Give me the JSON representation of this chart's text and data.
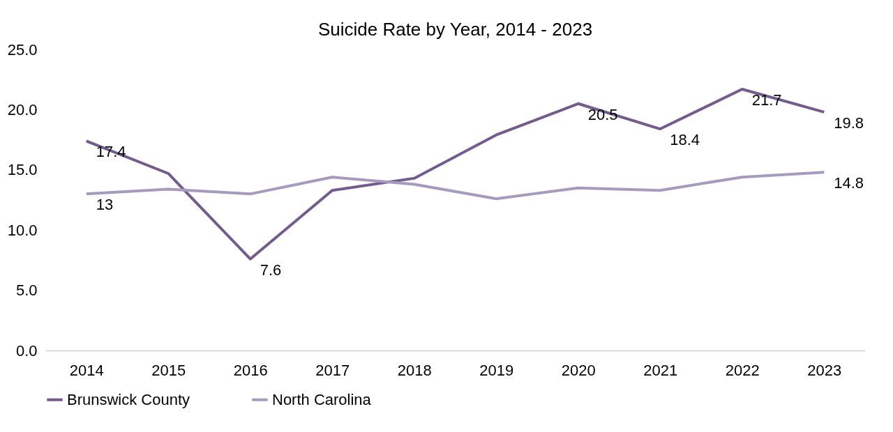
{
  "chart_data": {
    "type": "line",
    "title": "Suicide Rate by Year, 2014 - 2023",
    "categories": [
      "2014",
      "2015",
      "2016",
      "2017",
      "2018",
      "2019",
      "2020",
      "2021",
      "2022",
      "2023"
    ],
    "series": [
      {
        "name": "Brunswick County",
        "color": "#735a8f",
        "values": [
          17.4,
          14.7,
          7.6,
          13.3,
          14.3,
          17.9,
          20.5,
          18.4,
          21.7,
          19.8
        ],
        "value_labels": [
          "17.4",
          null,
          "7.6",
          null,
          null,
          null,
          "20.5",
          "18.4",
          "21.7",
          "19.8"
        ]
      },
      {
        "name": "North Carolina",
        "color": "#a899c0",
        "values": [
          13,
          13.4,
          13.0,
          14.4,
          13.8,
          12.6,
          13.5,
          13.3,
          14.4,
          14.8
        ],
        "value_labels": [
          "13",
          null,
          null,
          null,
          null,
          null,
          null,
          null,
          null,
          "14.8"
        ]
      }
    ],
    "ylim": [
      0,
      25
    ],
    "yticks": [
      {
        "value": 0,
        "label": "0.0"
      },
      {
        "value": 5,
        "label": "5.0"
      },
      {
        "value": 10,
        "label": "10.0"
      },
      {
        "value": 15,
        "label": "15.0"
      },
      {
        "value": 20,
        "label": "20.0"
      },
      {
        "value": 25,
        "label": "25.0"
      }
    ],
    "grid": false,
    "legend": "bottom",
    "marker": "none",
    "line_style": "solid"
  }
}
